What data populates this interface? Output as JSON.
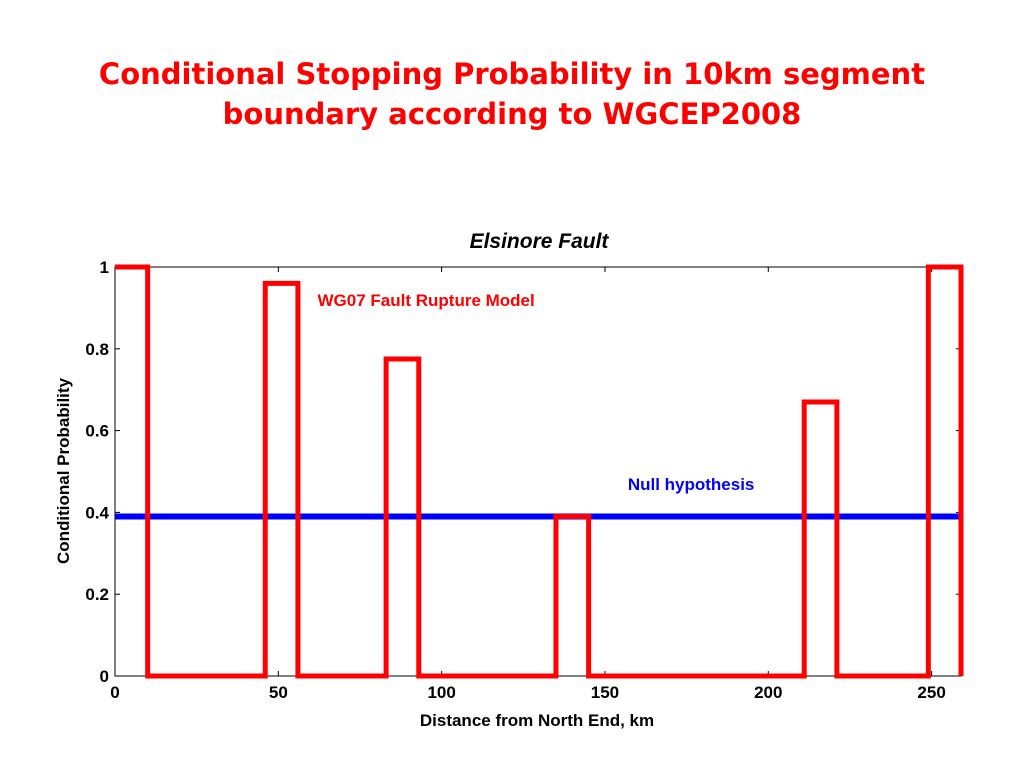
{
  "slide": {
    "title_line1": "Conditional Stopping Probability in 10km segment",
    "title_line2": "boundary according to WGCEP2008"
  },
  "colors": {
    "title": "#ff0000",
    "model": "#ff0000",
    "null": "#0000ff",
    "axis": "#000000"
  },
  "chart_data": {
    "type": "line",
    "title": "Elsinore Fault",
    "xlabel": "Distance from North End, km",
    "ylabel": "Conditional Probability",
    "xlim": [
      0,
      259
    ],
    "ylim": [
      0,
      1
    ],
    "xticks": [
      0,
      50,
      100,
      150,
      200,
      250
    ],
    "yticks": [
      0,
      0.2,
      0.4,
      0.6,
      0.8,
      1
    ],
    "xtick_labels": [
      "0",
      "50",
      "100",
      "150",
      "200",
      "250"
    ],
    "ytick_labels": [
      "0",
      "0.2",
      "0.4",
      "0.6",
      "0.8",
      "1"
    ],
    "grid": false,
    "series": [
      {
        "name": "WG07 Fault Rupture Model",
        "color": "#ff0000",
        "x": [
          0,
          10,
          10,
          46,
          46,
          56,
          56,
          83,
          83,
          93,
          93,
          135,
          135,
          145,
          145,
          211,
          211,
          221,
          221,
          249,
          249,
          259,
          259
        ],
        "y": [
          1,
          1,
          0,
          0,
          0.96,
          0.96,
          0,
          0,
          0.775,
          0.775,
          0,
          0,
          0.39,
          0.39,
          0,
          0,
          0.67,
          0.67,
          0,
          0,
          1,
          1,
          0
        ]
      },
      {
        "name": "Null hypothesis",
        "color": "#0000ff",
        "x": [
          0,
          259
        ],
        "y": [
          0.39,
          0.39
        ]
      }
    ],
    "annotations": [
      {
        "text": "WG07 Fault Rupture Model",
        "x": 62,
        "y": 0.905,
        "color": "#ff0000"
      },
      {
        "text": "Null hypothesis",
        "x": 157,
        "y": 0.455,
        "color": "#0000ff"
      }
    ]
  }
}
